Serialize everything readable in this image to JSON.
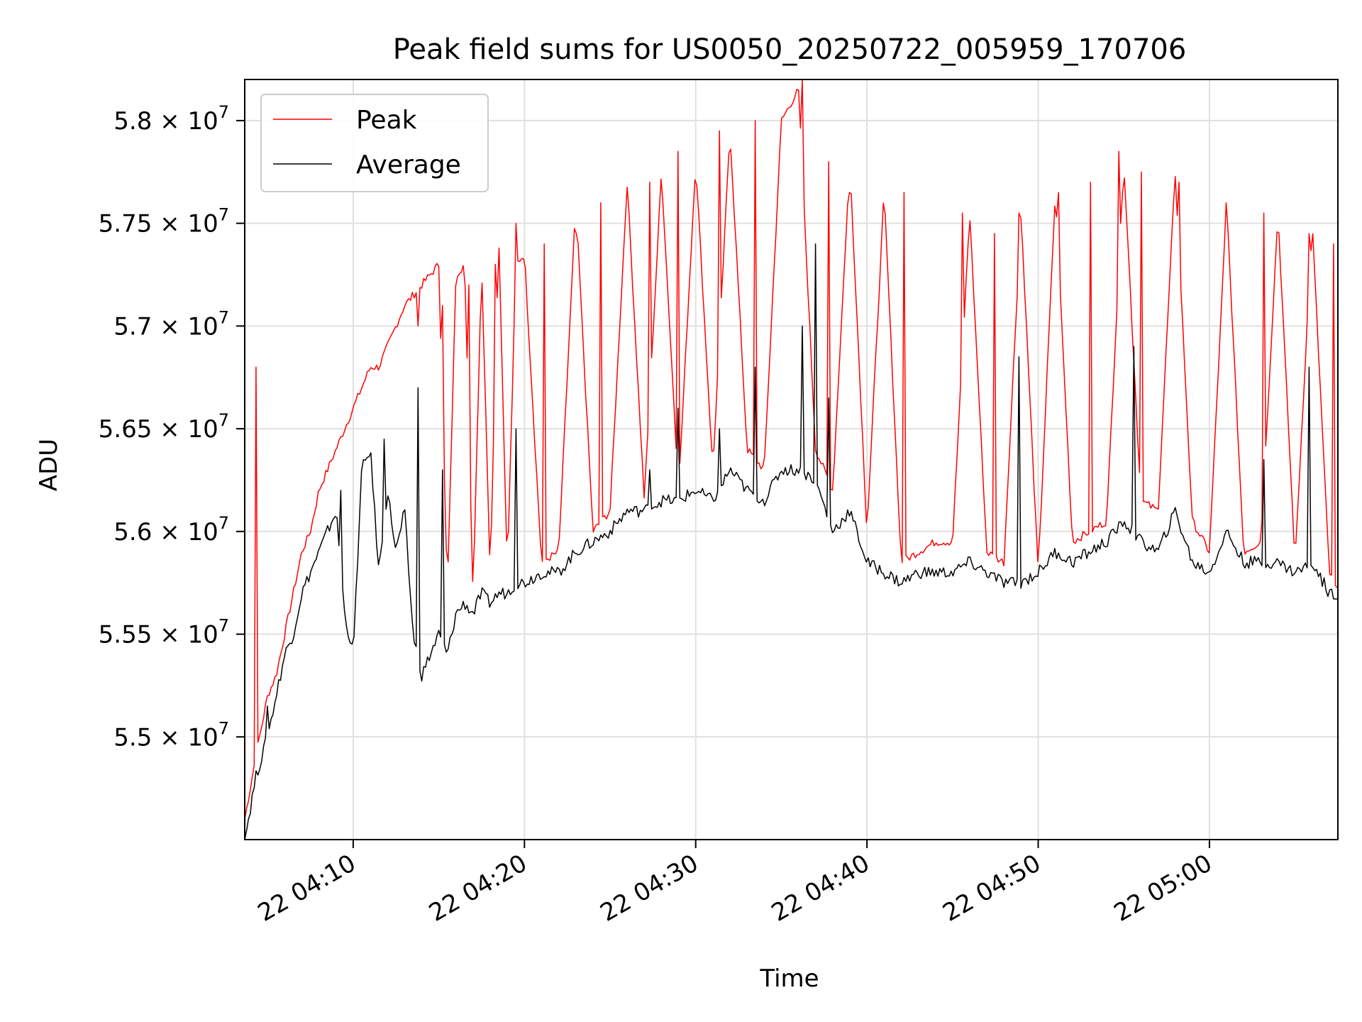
{
  "chart_data": {
    "type": "line",
    "title": "Peak field sums for US0050_20250722_005959_170706",
    "xlabel": "Time",
    "ylabel": "ADU",
    "xlim": [
      "22 04:03:40",
      "22 05:07:30"
    ],
    "ylim": [
      54500000,
      58200000
    ],
    "x_ticks": [
      "22 04:10",
      "22 04:20",
      "22 04:30",
      "22 04:40",
      "22 04:50",
      "22 05:00"
    ],
    "x_tick_minutes": [
      10,
      20,
      30,
      40,
      50,
      60
    ],
    "y_ticks": [
      {
        "value": 55000000,
        "mantissa": "5.5"
      },
      {
        "value": 55500000,
        "mantissa": "5.55"
      },
      {
        "value": 56000000,
        "mantissa": "5.6"
      },
      {
        "value": 56500000,
        "mantissa": "5.65"
      },
      {
        "value": 57000000,
        "mantissa": "5.7"
      },
      {
        "value": 57500000,
        "mantissa": "5.75"
      },
      {
        "value": 58000000,
        "mantissa": "5.8"
      }
    ],
    "y_tick_multiplier": "× 10",
    "y_tick_exponent": "7",
    "grid": true,
    "legend_position": "top-left",
    "x_minutes_after_04_00": [
      3.67,
      4.3,
      5.0,
      5.5,
      6.0,
      6.5,
      7.0,
      7.5,
      8.0,
      8.5,
      9.0,
      9.5,
      10.0,
      10.5,
      11.0,
      11.5,
      12.0,
      12.5,
      13.0,
      13.5,
      14.0,
      14.5,
      15.0,
      15.5,
      16.0,
      16.5,
      17.0,
      17.5,
      18.0,
      18.5,
      19.0,
      19.5,
      20.0,
      21.0,
      22.0,
      23.0,
      24.0,
      25.0,
      26.0,
      27.0,
      28.0,
      29.0,
      30.0,
      31.0,
      32.0,
      33.0,
      34.0,
      35.0,
      36.0,
      37.0,
      38.0,
      39.0,
      40.0,
      41.0,
      42.0,
      43.0,
      44.0,
      45.0,
      46.0,
      47.0,
      48.0,
      49.0,
      50.0,
      51.0,
      52.0,
      53.0,
      54.0,
      55.0,
      56.0,
      57.0,
      58.0,
      59.0,
      60.0,
      61.0,
      62.0,
      63.0,
      64.0,
      65.0,
      66.0,
      67.0,
      67.5
    ],
    "series": [
      {
        "name": "Peak",
        "color": "#ff0000",
        "values": [
          54600000,
          54900000,
          55200000,
          55300000,
          55500000,
          55700000,
          55900000,
          56000000,
          56200000,
          56300000,
          56400000,
          56500000,
          56600000,
          56700000,
          56800000,
          56800000,
          56900000,
          57000000,
          57100000,
          57150000,
          57200000,
          57250000,
          57300000,
          55700000,
          57250000,
          57300000,
          55700000,
          57300000,
          55800000,
          57450000,
          55800000,
          57300000,
          57350000,
          55850000,
          55900000,
          57600000,
          56000000,
          56100000,
          57700000,
          56150000,
          57750000,
          56200000,
          57800000,
          56300000,
          57950000,
          56400000,
          56300000,
          58000000,
          58150000,
          56400000,
          56200000,
          57800000,
          56000000,
          57650000,
          55850000,
          55900000,
          55950000,
          55950000,
          57550000,
          55900000,
          55850000,
          57550000,
          55800000,
          57650000,
          55950000,
          56000000,
          56050000,
          57800000,
          56150000,
          56100000,
          57750000,
          56050000,
          55900000,
          57600000,
          55900000,
          55950000,
          57550000,
          55850000,
          57500000,
          55800000,
          55700000
        ],
        "spikes": [
          [
            4.3,
            56800000
          ],
          [
            13.8,
            57000000
          ],
          [
            15.2,
            57100000
          ],
          [
            16.8,
            57200000
          ],
          [
            18.3,
            57300000
          ],
          [
            19.5,
            57500000
          ],
          [
            21.2,
            57400000
          ],
          [
            23.0,
            57450000
          ],
          [
            24.5,
            57600000
          ],
          [
            27.3,
            57700000
          ],
          [
            29.0,
            57850000
          ],
          [
            31.4,
            57950000
          ],
          [
            33.5,
            58000000
          ],
          [
            36.2,
            58200000
          ],
          [
            37.8,
            57800000
          ],
          [
            39.0,
            57650000
          ],
          [
            42.2,
            57650000
          ],
          [
            45.6,
            57550000
          ],
          [
            47.5,
            57450000
          ],
          [
            48.9,
            57550000
          ],
          [
            51.2,
            57650000
          ],
          [
            53.1,
            57700000
          ],
          [
            54.7,
            57850000
          ],
          [
            56.0,
            57750000
          ],
          [
            58.2,
            57700000
          ],
          [
            61.0,
            57600000
          ],
          [
            63.2,
            57550000
          ],
          [
            65.8,
            57450000
          ],
          [
            67.2,
            57400000
          ]
        ]
      },
      {
        "name": "Average",
        "color": "#000000",
        "values": [
          54500000,
          54800000,
          55000000,
          55200000,
          55400000,
          55500000,
          55700000,
          55800000,
          55900000,
          56000000,
          56100000,
          55600000,
          55400000,
          56300000,
          56400000,
          55800000,
          56200000,
          55900000,
          56100000,
          55500000,
          55300000,
          55400000,
          55500000,
          55400000,
          55600000,
          55650000,
          55600000,
          55700000,
          55650000,
          55700000,
          55700000,
          55750000,
          55750000,
          55800000,
          55800000,
          55900000,
          55950000,
          56000000,
          56100000,
          56100000,
          56150000,
          56150000,
          56200000,
          56150000,
          56300000,
          56200000,
          56150000,
          56300000,
          56300000,
          56250000,
          56000000,
          56100000,
          55850000,
          55800000,
          55750000,
          55800000,
          55800000,
          55800000,
          55850000,
          55800000,
          55750000,
          55750000,
          55800000,
          55900000,
          55850000,
          55900000,
          55950000,
          56050000,
          55950000,
          55900000,
          56100000,
          55850000,
          55800000,
          56000000,
          55850000,
          55850000,
          55850000,
          55800000,
          55850000,
          55700000,
          55700000
        ],
        "spikes": [
          [
            5.0,
            55150000
          ],
          [
            9.3,
            56200000
          ],
          [
            11.8,
            56450000
          ],
          [
            13.8,
            56700000
          ],
          [
            15.2,
            56300000
          ],
          [
            19.5,
            56500000
          ],
          [
            27.3,
            56300000
          ],
          [
            29.0,
            56600000
          ],
          [
            31.4,
            56500000
          ],
          [
            33.5,
            56800000
          ],
          [
            36.2,
            57000000
          ],
          [
            37.0,
            57400000
          ],
          [
            37.8,
            56650000
          ],
          [
            48.9,
            56850000
          ],
          [
            55.6,
            56900000
          ],
          [
            63.2,
            56350000
          ],
          [
            65.8,
            56800000
          ]
        ]
      }
    ]
  }
}
